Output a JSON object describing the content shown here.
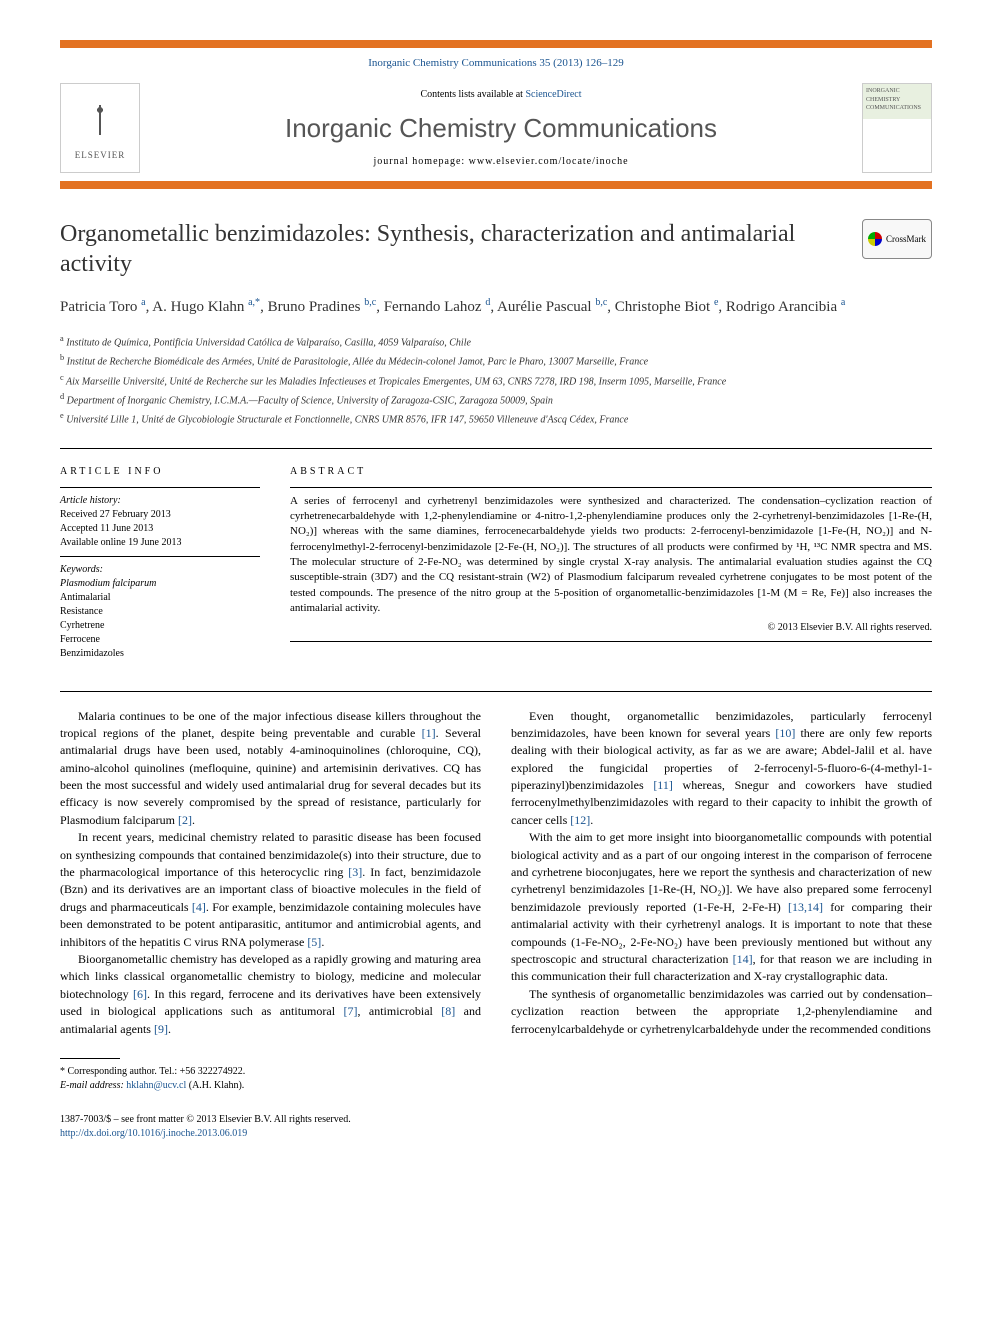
{
  "journal_ref": "Inorganic Chemistry Communications 35 (2013) 126–129",
  "contents_text": "Contents lists available at ",
  "sciencedirect": "ScienceDirect",
  "journal_title": "Inorganic Chemistry Communications",
  "homepage_label": "journal homepage: ",
  "homepage_url": "www.elsevier.com/locate/inoche",
  "elsevier_label": "ELSEVIER",
  "cover_text": "INORGANIC CHEMISTRY COMMUNICATIONS",
  "crossmark_label": "CrossMark",
  "title": "Organometallic benzimidazoles: Synthesis, characterization and antimalarial activity",
  "authors_html": "Patricia Toro <sup>a</sup>, A. Hugo Klahn <sup>a,*</sup>, Bruno Pradines <sup>b,c</sup>, Fernando Lahoz <sup>d</sup>, Aurélie Pascual <sup>b,c</sup>, Christophe Biot <sup>e</sup>, Rodrigo Arancibia <sup>a</sup>",
  "affiliations": [
    {
      "sup": "a",
      "text": "Instituto de Química, Pontificia Universidad Católica de Valparaíso, Casilla, 4059 Valparaíso, Chile"
    },
    {
      "sup": "b",
      "text": "Institut de Recherche Biomédicale des Armées, Unité de Parasitologie, Allée du Médecin-colonel Jamot, Parc le Pharo, 13007 Marseille, France"
    },
    {
      "sup": "c",
      "text": "Aix Marseille Université, Unité de Recherche sur les Maladies Infectieuses et Tropicales Emergentes, UM 63, CNRS 7278, IRD 198, Inserm 1095, Marseille, France"
    },
    {
      "sup": "d",
      "text": "Department of Inorganic Chemistry, I.C.M.A.—Faculty of Science, University of Zaragoza-CSIC, Zaragoza 50009, Spain"
    },
    {
      "sup": "e",
      "text": "Université Lille 1, Unité de Glycobiologie Structurale et Fonctionnelle, CNRS UMR 8576, IFR 147, 59650 Villeneuve d'Ascq Cédex, France"
    }
  ],
  "info_heading": "ARTICLE INFO",
  "history_label": "Article history:",
  "history": [
    "Received 27 February 2013",
    "Accepted 11 June 2013",
    "Available online 19 June 2013"
  ],
  "keywords_label": "Keywords:",
  "keywords": [
    "Plasmodium falciparum",
    "Antimalarial",
    "Resistance",
    "Cyrhetrene",
    "Ferrocene",
    "Benzimidazoles"
  ],
  "abstract_heading": "ABSTRACT",
  "abstract_text": "A series of ferrocenyl and cyrhetrenyl benzimidazoles were synthesized and characterized. The condensation–cyclization reaction of cyrhetrenecarbaldehyde with 1,2-phenylendiamine or 4-nitro-1,2-phenylendiamine produces only the 2-cyrhetrenyl-benzimidazoles [1-Re-(H, NO₂)] whereas with the same diamines, ferrocenecarbaldehyde yields two products: 2-ferrocenyl-benzimidazole [1-Fe-(H, NO₂)] and N-ferrocenylmethyl-2-ferrocenyl-benzimidazole [2-Fe-(H, NO₂)]. The structures of all products were confirmed by ¹H, ¹³C NMR spectra and MS. The molecular structure of 2-Fe-NO₂ was determined by single crystal X-ray analysis. The antimalarial evaluation studies against the CQ susceptible-strain (3D7) and the CQ resistant-strain (W2) of Plasmodium falciparum revealed cyrhetrene conjugates to be most potent of the tested compounds. The presence of the nitro group at the 5-position of organometallic-benzimidazoles [1-M (M = Re, Fe)] also increases the antimalarial activity.",
  "copyright": "© 2013 Elsevier B.V. All rights reserved.",
  "body": {
    "p1a": "Malaria continues to be one of the major infectious disease killers throughout the tropical regions of the planet, despite being preventable and curable ",
    "r1": "[1]",
    "p1b": ". Several antimalarial drugs have been used, notably 4-aminoquinolines (chloroquine, CQ), amino-alcohol quinolines (mefloquine, quinine) and artemisinin derivatives. CQ has been the most successful and widely used antimalarial drug for several decades but its efficacy is now severely compromised by the spread of resistance, particularly for Plasmodium falciparum ",
    "r2": "[2]",
    "p1c": ".",
    "p2a": "In recent years, medicinal chemistry related to parasitic disease has been focused on synthesizing compounds that contained benzimidazole(s) into their structure, due to the pharmacological importance of this heterocyclic ring ",
    "r3": "[3]",
    "p2b": ". In fact, benzimidazole (Bzn) and its derivatives are an important class of bioactive molecules in the field of drugs and pharmaceuticals ",
    "r4": "[4]",
    "p2c": ". For example, benzimidazole containing molecules have been demonstrated to be potent antiparasitic, antitumor and antimicrobial agents, and inhibitors of the hepatitis C virus RNA polymerase ",
    "r5": "[5]",
    "p2d": ".",
    "p3a": "Bioorganometallic chemistry has developed as a rapidly growing and maturing area which links classical organometallic chemistry to biology, medicine and molecular biotechnology ",
    "r6": "[6]",
    "p3b": ". In this regard, ferrocene and its derivatives have been extensively used in biological applications such as antitumoral ",
    "r7": "[7]",
    "p3c": ", antimicrobial ",
    "r8": "[8]",
    "p3d": " and antimalarial agents ",
    "r9": "[9]",
    "p3e": ".",
    "p4a": "Even thought, organometallic benzimidazoles, particularly ferrocenyl benzimidazoles, have been known for several years ",
    "r10": "[10]",
    "p4b": " there are only few reports dealing with their biological activity, as far as we are aware; Abdel-Jalil et al. have explored the fungicidal properties of 2-ferrocenyl-5-fluoro-6-(4-methyl-1-piperazinyl)benzimidazoles ",
    "r11": "[11]",
    "p4c": " whereas, Snegur and coworkers have studied ferrocenylmethylbenzimidazoles with regard to their capacity to inhibit the growth of cancer cells ",
    "r12": "[12]",
    "p4d": ".",
    "p5a": "With the aim to get more insight into bioorganometallic compounds with potential biological activity and as a part of our ongoing interest in the comparison of ferrocene and cyrhetrene bioconjugates, here we report the synthesis and characterization of new cyrhetrenyl benzimidazoles [1-Re-(H, NO₂)]. We have also prepared some ferrocenyl benzimidazole previously reported (1-Fe-H, 2-Fe-H) ",
    "r1314": "[13,14]",
    "p5b": " for comparing their antimalarial activity with their cyrhetrenyl analogs. It is important to note that these compounds (1-Fe-NO₂, 2-Fe-NO₂) have been previously mentioned but without any spectroscopic and structural characterization ",
    "r14": "[14]",
    "p5c": ", for that reason we are including in this communication their full characterization and X-ray crystallographic data.",
    "p6": "The synthesis of organometallic benzimidazoles was carried out by condensation–cyclization reaction between the appropriate 1,2-phenylendiamine and ferrocenylcarbaldehyde or cyrhetrenylcarbaldehyde under the recommended conditions"
  },
  "footnote_corr": "* Corresponding author. Tel.: +56 322274922.",
  "footnote_email_label": "E-mail address: ",
  "footnote_email": "hklahn@ucv.cl",
  "footnote_email_author": " (A.H. Klahn).",
  "issn_line": "1387-7003/$ – see front matter © 2013 Elsevier B.V. All rights reserved.",
  "doi": "http://dx.doi.org/10.1016/j.inoche.2013.06.019",
  "colors": {
    "accent": "#e37222",
    "link": "#1a5490",
    "text": "#333333"
  }
}
